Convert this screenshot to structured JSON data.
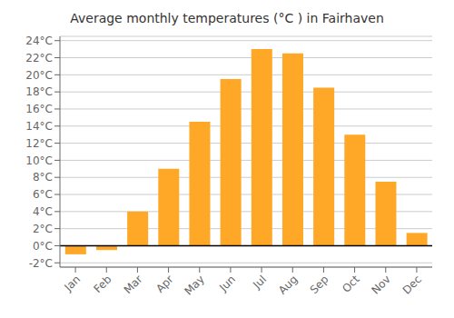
{
  "chart_data": {
    "type": "bar",
    "title": "Average monthly temperatures (°C ) in Fairhaven",
    "categories": [
      "Jan",
      "Feb",
      "Mar",
      "Apr",
      "May",
      "Jun",
      "Jul",
      "Aug",
      "Sep",
      "Oct",
      "Nov",
      "Dec"
    ],
    "values": [
      -1.0,
      -0.5,
      4.0,
      9.0,
      14.5,
      19.5,
      23.0,
      22.5,
      18.5,
      13.0,
      7.5,
      1.5
    ],
    "color": "#FFA726",
    "ylim": [
      -2.5,
      24.5
    ],
    "yticks": [
      {
        "value": -2,
        "label": "-2°C"
      },
      {
        "value": 0,
        "label": "0°C"
      },
      {
        "value": 2,
        "label": "2°C"
      },
      {
        "value": 4,
        "label": "4°C"
      },
      {
        "value": 6,
        "label": "6°C"
      },
      {
        "value": 8,
        "label": "8°C"
      },
      {
        "value": 10,
        "label": "10°C"
      },
      {
        "value": 12,
        "label": "12°C"
      },
      {
        "value": 14,
        "label": "14°C"
      },
      {
        "value": 16,
        "label": "16°C"
      },
      {
        "value": 18,
        "label": "18°C"
      },
      {
        "value": 20,
        "label": "20°C"
      },
      {
        "value": 22,
        "label": "22°C"
      },
      {
        "value": 24,
        "label": "24°C"
      }
    ],
    "grid": true
  }
}
